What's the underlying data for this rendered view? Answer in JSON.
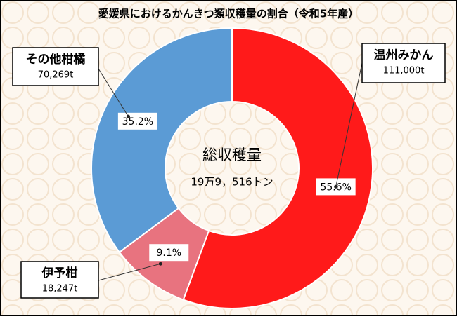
{
  "chart_data": {
    "type": "pie",
    "donut": true,
    "title": "愛媛県におけるかんきつ類収穫量の割合（令和5年産）",
    "center_title": "総収穫量",
    "center_value": "19万9，516トン",
    "categories": [
      "温州みかん",
      "伊予柑",
      "その他柑橘"
    ],
    "values": [
      111000,
      18247,
      70269
    ],
    "value_labels": [
      "111,000t",
      "18,247t",
      "70,269t"
    ],
    "shares": [
      55.6,
      9.1,
      35.2
    ],
    "share_labels": [
      "55.6%",
      "9.1%",
      "35.2%"
    ],
    "colors": [
      "#ff1a1a",
      "#e8737f",
      "#5b9bd5"
    ]
  }
}
